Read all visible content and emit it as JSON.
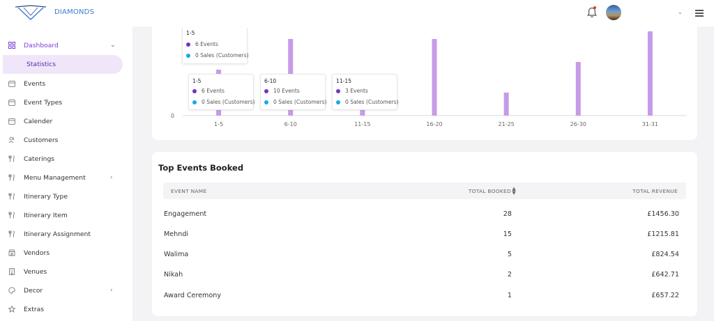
{
  "header": {
    "brand": "DIAMONDS"
  },
  "sidebar": {
    "items": [
      {
        "label": "Dashboard",
        "icon": "grid-icon",
        "chevron": "⌄"
      },
      {
        "label": "Statistics"
      },
      {
        "label": "Events",
        "icon": "calendar-icon"
      },
      {
        "label": "Event Types",
        "icon": "calendar-icon"
      },
      {
        "label": "Calender",
        "icon": "calendar-icon"
      },
      {
        "label": "Customers",
        "icon": "users-icon"
      },
      {
        "label": "Caterings",
        "icon": "fork-knife-icon"
      },
      {
        "label": "Menu Management",
        "icon": "fork-knife-icon",
        "chevron": "›"
      },
      {
        "label": "Itinerary Type",
        "icon": "fork-knife-icon"
      },
      {
        "label": "Itinerary Item",
        "icon": "fork-knife-icon"
      },
      {
        "label": "Itinerary Assignment",
        "icon": "fork-knife-icon"
      },
      {
        "label": "Vendors",
        "icon": "store-icon"
      },
      {
        "label": "Venues",
        "icon": "building-icon"
      },
      {
        "label": "Decor",
        "icon": "palette-icon",
        "chevron": "›"
      },
      {
        "label": "Extras",
        "icon": "star-icon"
      }
    ]
  },
  "chart_data": {
    "type": "bar",
    "categories": [
      "1-5",
      "6-10",
      "11-15",
      "16-20",
      "21-25",
      "26-30",
      "31-31"
    ],
    "series": [
      {
        "name": "Events",
        "values": [
          6,
          10,
          3,
          10,
          3,
          7,
          11
        ],
        "color": "#c79be8"
      },
      {
        "name": "Sales (Customers)",
        "values": [
          0,
          0,
          0,
          0,
          0,
          0,
          0
        ],
        "color": "#1aa9e6"
      }
    ],
    "y_tick_labels": [
      "0"
    ],
    "ylim": [
      0,
      11
    ]
  },
  "tooltips": [
    {
      "title": "1-5",
      "events": "6 Events",
      "sales": "0 Sales (Customers)"
    },
    {
      "title": "1-5",
      "events": "6 Events",
      "sales": "0 Sales (Customers)"
    },
    {
      "title": "6-10",
      "events": "10 Events",
      "sales": "0 Sales (Customers)"
    },
    {
      "title": "11-15",
      "events": "3 Events",
      "sales": "0 Sales (Customers)"
    }
  ],
  "table": {
    "title": "Top Events Booked",
    "columns": [
      "EVENT NAME",
      "TOTAL BOOKED",
      "TOTAL REVENUE"
    ],
    "rows": [
      {
        "name": "Engagement",
        "booked": "28",
        "revenue": "£1456.30"
      },
      {
        "name": "Mehndi",
        "booked": "15",
        "revenue": "£1215.81"
      },
      {
        "name": "Walima",
        "booked": "5",
        "revenue": "£824.54"
      },
      {
        "name": "Nikah",
        "booked": "2",
        "revenue": "£642.71"
      },
      {
        "name": "Award Ceremony",
        "booked": "1",
        "revenue": "£657.22"
      }
    ]
  },
  "colors": {
    "accent": "#7b3fd6",
    "bar": "#c79be8",
    "sales": "#1aa9e6",
    "events_dot": "#7a2fc4"
  }
}
